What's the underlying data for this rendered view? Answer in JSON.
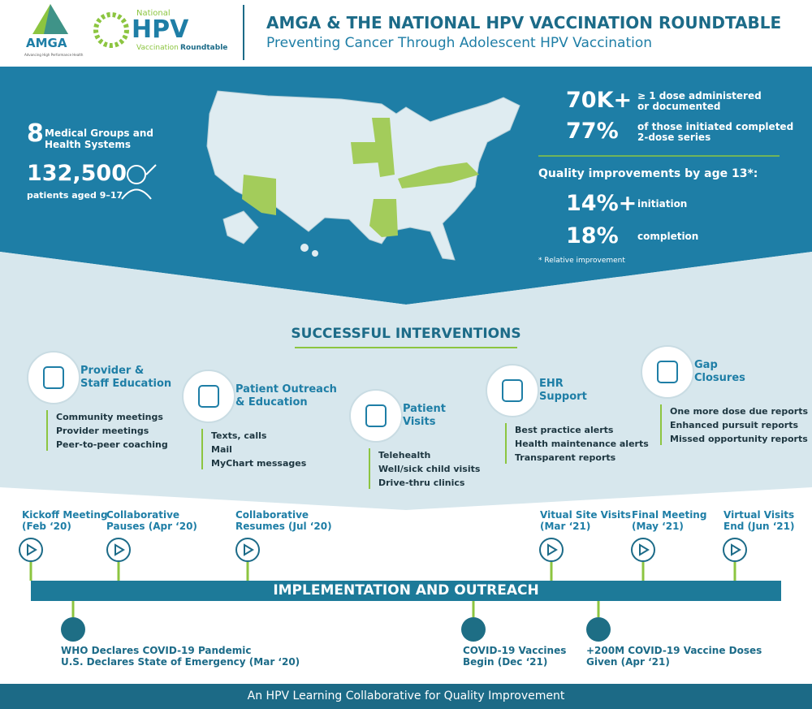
{
  "header": {
    "logo_amga": "AMGA",
    "logo_amga_tagline": "Advancing High Performance Health",
    "logo_hpv_top": "National",
    "logo_hpv_main": "HPV",
    "logo_hpv_bottom_1": "Vaccination",
    "logo_hpv_bottom_2": "Roundtable",
    "title": "AMGA & THE NATIONAL HPV VACCINATION ROUNDTABLE",
    "subtitle": "Preventing Cancer Through Adolescent HPV Vaccination"
  },
  "overview": {
    "groups_number": "8",
    "groups_text_1": "Medical Groups and",
    "groups_text_2": "Health Systems",
    "patients_number": "132,500",
    "patients_text": "patients aged 9–17"
  },
  "stats": [
    {
      "value": "70K+",
      "label_1": "≥ 1 dose administered",
      "label_2": "or documented"
    },
    {
      "value": "77%",
      "label_1": "of those initiated completed",
      "label_2": "2-dose series"
    }
  ],
  "quality": {
    "heading": "Quality improvements by age 13*:",
    "items": [
      {
        "value": "14%+",
        "label": "initiation"
      },
      {
        "value": "18%",
        "label": "completion"
      }
    ],
    "footnote": "* Relative improvement"
  },
  "interventions": {
    "heading": "SUCCESSFUL INTERVENTIONS",
    "items": [
      {
        "title_1": "Provider &",
        "title_2": "Staff Education",
        "bullets": [
          "Community meetings",
          "Provider meetings",
          "Peer-to-peer coaching"
        ]
      },
      {
        "title_1": "Patient Outreach",
        "title_2": "& Education",
        "bullets": [
          "Texts, calls",
          "Mail",
          "MyChart messages"
        ]
      },
      {
        "title_1": "Patient",
        "title_2": "Visits",
        "bullets": [
          "Telehealth",
          "Well/sick child visits",
          "Drive-thru clinics"
        ]
      },
      {
        "title_1": "EHR",
        "title_2": "Support",
        "bullets": [
          "Best practice alerts",
          "Health maintenance alerts",
          "Transparent reports"
        ]
      },
      {
        "title_1": "Gap",
        "title_2": "Closures",
        "bullets": [
          "One more dose due reports",
          "Enhanced pursuit reports",
          "Missed opportunity reports"
        ]
      }
    ]
  },
  "timeline": {
    "banner": "IMPLEMENTATION AND OUTREACH",
    "above": [
      {
        "line_1": "Kickoff Meeting",
        "line_2": "(Feb ‘20)"
      },
      {
        "line_1": "Collaborative",
        "line_2": "Pauses (Apr ‘20)"
      },
      {
        "line_1": "Collaborative",
        "line_2": "Resumes (Jul ‘20)"
      },
      {
        "line_1": "Vitual Site Visits",
        "line_2": "(Mar ‘21)"
      },
      {
        "line_1": "Final Meeting",
        "line_2": "(May ‘21)"
      },
      {
        "line_1": "Virtual Visits",
        "line_2": "End (Jun ‘21)"
      }
    ],
    "below": [
      {
        "line_1": "WHO Declares COVID-19 Pandemic",
        "line_2": "U.S. Declares State of Emergency (Mar ‘20)"
      },
      {
        "line_1": "COVID-19 Vaccines",
        "line_2": "Begin (Dec ‘21)"
      },
      {
        "line_1": "+200M COVID-19 Vaccine Doses",
        "line_2": "Given (Apr ‘21)"
      }
    ]
  },
  "footer": {
    "text": "An HPV Learning Collaborative for Quality Improvement"
  }
}
